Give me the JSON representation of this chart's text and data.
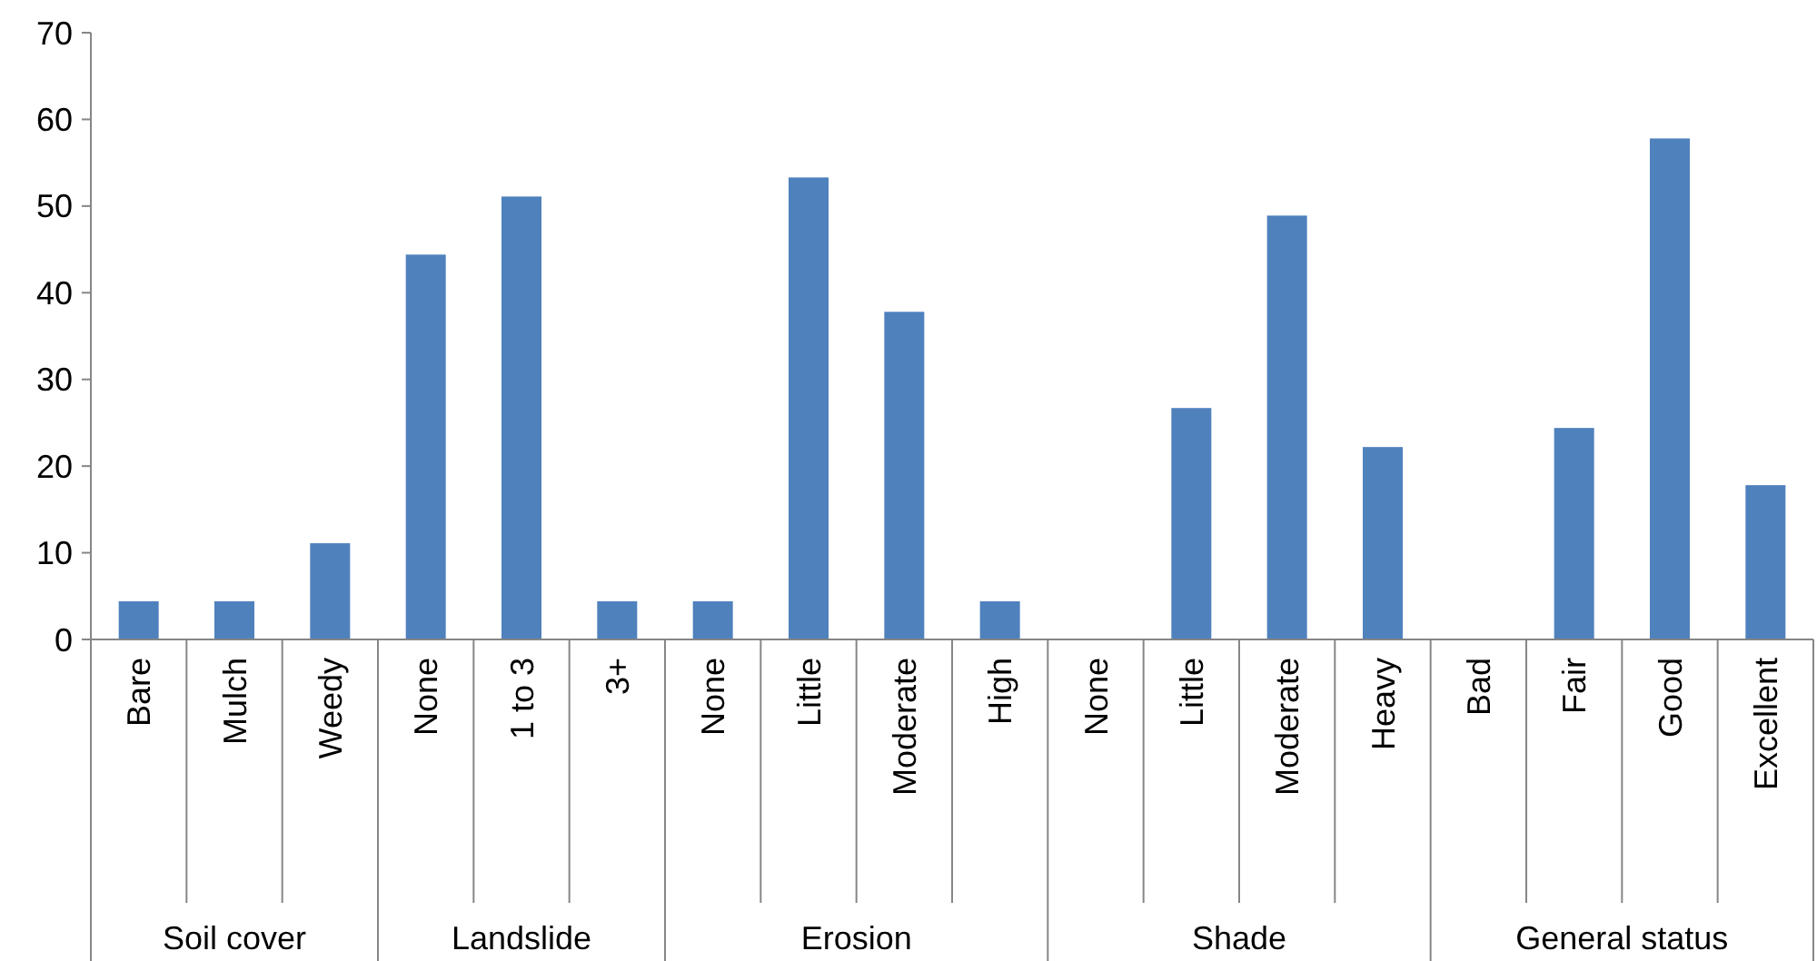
{
  "chart_data": {
    "type": "bar",
    "categories": [
      "Bare",
      "Mulch",
      "Weedy",
      "None",
      "1 to 3",
      "3+",
      "None",
      "Little",
      "Moderate",
      "High",
      "None",
      "Little",
      "Moderate",
      "Heavy",
      "Bad",
      "Fair",
      "Good",
      "Excellent"
    ],
    "values": [
      4.4,
      4.4,
      11.1,
      44.4,
      51.1,
      4.4,
      4.4,
      53.3,
      37.8,
      4.4,
      0,
      26.7,
      48.9,
      22.2,
      0,
      24.4,
      57.8,
      17.8
    ],
    "color": "#4f81bd",
    "ylim": [
      0,
      70
    ],
    "yticks": [
      0,
      10,
      20,
      30,
      40,
      50,
      60,
      70
    ],
    "grid": false,
    "annotations": [
      "Soil cover",
      "Landslide",
      "Erosion",
      "Shade",
      "General status"
    ]
  }
}
